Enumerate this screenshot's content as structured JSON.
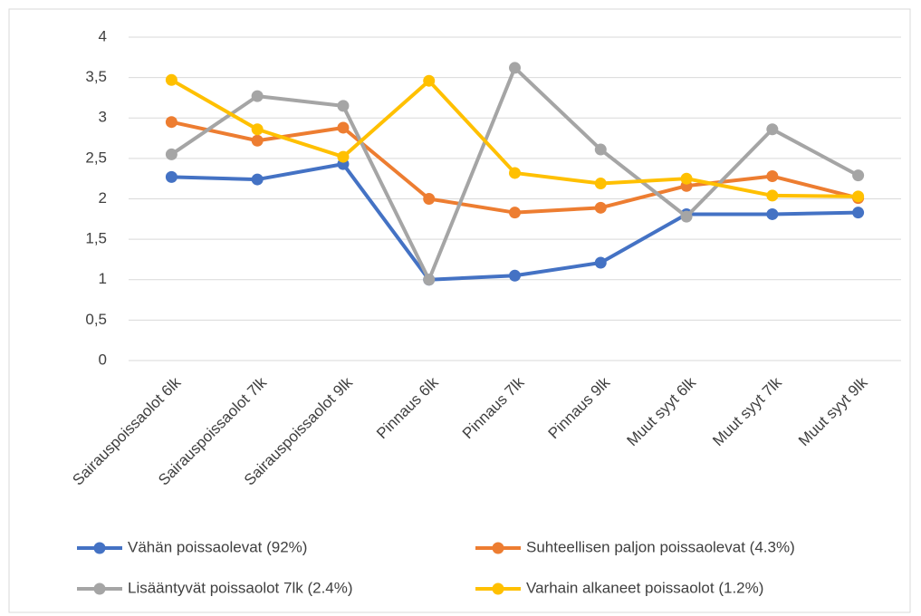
{
  "chart_data": {
    "type": "line",
    "categories": [
      "Sairauspoissaolot 6lk",
      "Sairauspoissaolot 7lk",
      "Sairauspoissaolot 9lk",
      "Pinnaus 6lk",
      "Pinnaus 7lk",
      "Pinnaus 9lk",
      "Muut syyt 6lk",
      "Muut syyt 7lk",
      "Muut syyt 9lk"
    ],
    "series": [
      {
        "name": "Vähän poissaolevat (92%)",
        "color": "#4472c4",
        "values": [
          2.27,
          2.24,
          2.43,
          1.0,
          1.05,
          1.21,
          1.81,
          1.81,
          1.83
        ]
      },
      {
        "name": "Suhteellisen paljon poissaolevat (4.3%)",
        "color": "#ed7d31",
        "values": [
          2.95,
          2.72,
          2.88,
          2.0,
          1.83,
          1.89,
          2.16,
          2.28,
          2.01
        ]
      },
      {
        "name": "Lisääntyvät poissaolot 7lk (2.4%)",
        "color": "#a5a5a5",
        "values": [
          2.55,
          3.27,
          3.15,
          1.0,
          3.62,
          2.61,
          1.78,
          2.86,
          2.29
        ]
      },
      {
        "name": "Varhain alkaneet poissaolot (1.2%)",
        "color": "#ffc000",
        "values": [
          3.47,
          2.86,
          2.52,
          3.46,
          2.32,
          2.19,
          2.25,
          2.04,
          2.03
        ]
      }
    ],
    "ylim": [
      0,
      4
    ],
    "yticks": [
      0,
      {
        "value": 0.5,
        "label": "0,5"
      },
      1,
      {
        "value": 1.5,
        "label": "1,5"
      },
      2,
      {
        "value": 2.5,
        "label": "2,5"
      },
      3,
      {
        "value": 3.5,
        "label": "3,5"
      },
      4
    ],
    "grid": true,
    "legend": "bottom"
  }
}
